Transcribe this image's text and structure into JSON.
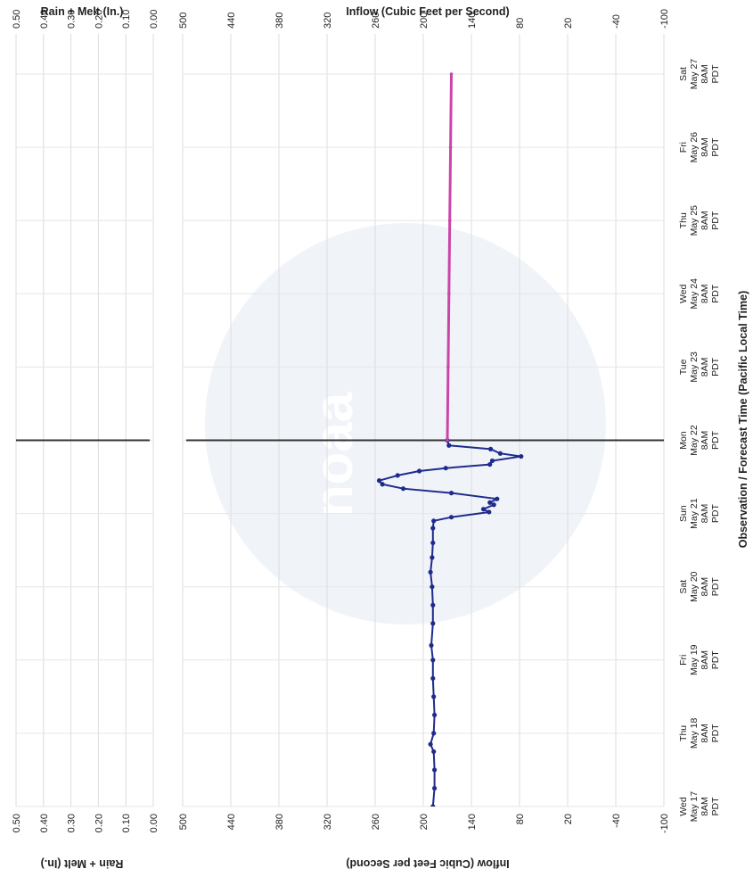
{
  "chart_data": [
    {
      "type": "bar",
      "panel": "precipitation",
      "title": "Rain + Melt (In.)",
      "title_bottom": "Rain + Melt (In.)",
      "ylim": [
        0,
        0.5
      ],
      "ticks": [
        {
          "v": 0.5,
          "label": "0.50"
        },
        {
          "v": 0.4,
          "label": "0.40"
        },
        {
          "v": 0.3,
          "label": "0.30"
        },
        {
          "v": 0.2,
          "label": "0.20"
        },
        {
          "v": 0.1,
          "label": "0.10"
        },
        {
          "v": 0,
          "label": "0.00"
        }
      ],
      "values": []
    },
    {
      "type": "line",
      "panel": "inflow",
      "title": "Inflow (Cubic Feet per Second)",
      "title_bottom": "Inflow (Cubic Feet per Second)",
      "xlabel": "Observation / Forecast Time (Pacific Local Time)",
      "ylim": [
        -100,
        500
      ],
      "ticks": [
        {
          "v": 500,
          "label": "500"
        },
        {
          "v": 440,
          "label": "440"
        },
        {
          "v": 380,
          "label": "380"
        },
        {
          "v": 320,
          "label": "320"
        },
        {
          "v": 260,
          "label": "260"
        },
        {
          "v": 200,
          "label": "200"
        },
        {
          "v": 140,
          "label": "140"
        },
        {
          "v": 80,
          "label": "80"
        },
        {
          "v": 20,
          "label": "20"
        },
        {
          "v": -40,
          "label": "-40"
        },
        {
          "v": -100,
          "label": "-100"
        }
      ],
      "xlim_days": [
        17,
        27
      ],
      "time_ticks": [
        {
          "day": 17,
          "lines": [
            "Wed",
            "May 17",
            "8AM",
            "PDT"
          ]
        },
        {
          "day": 18,
          "lines": [
            "Thu",
            "May 18",
            "8AM",
            "PDT"
          ]
        },
        {
          "day": 19,
          "lines": [
            "Fri",
            "May 19",
            "8AM",
            "PDT"
          ]
        },
        {
          "day": 20,
          "lines": [
            "Sat",
            "May 20",
            "8AM",
            "PDT"
          ]
        },
        {
          "day": 21,
          "lines": [
            "Sun",
            "May 21",
            "8AM",
            "PDT"
          ]
        },
        {
          "day": 22,
          "lines": [
            "Mon",
            "May 22",
            "8AM",
            "PDT"
          ]
        },
        {
          "day": 23,
          "lines": [
            "Tue",
            "May 23",
            "8AM",
            "PDT"
          ]
        },
        {
          "day": 24,
          "lines": [
            "Wed",
            "May 24",
            "8AM",
            "PDT"
          ]
        },
        {
          "day": 25,
          "lines": [
            "Thu",
            "May 25",
            "8AM",
            "PDT"
          ]
        },
        {
          "day": 26,
          "lines": [
            "Fri",
            "May 26",
            "8AM",
            "PDT"
          ]
        },
        {
          "day": 27,
          "lines": [
            "Sat",
            "May 27",
            "8AM",
            "PDT"
          ]
        }
      ],
      "current_time_day": 22,
      "watermark": "noaa",
      "series": [
        {
          "role": "observed",
          "color": "#1f2b8c",
          "x": [
            17.0,
            17.25,
            17.5,
            17.75,
            17.85,
            18.0,
            18.25,
            18.5,
            18.75,
            19.0,
            19.2,
            19.5,
            19.75,
            20.0,
            20.2,
            20.4,
            20.6,
            20.8,
            20.9,
            20.95,
            21.02,
            21.06,
            21.12,
            21.15,
            21.2,
            21.28,
            21.34,
            21.4,
            21.45,
            21.52,
            21.58,
            21.62,
            21.67,
            21.72,
            21.78,
            21.82,
            21.88,
            21.93,
            22.0
          ],
          "values": [
            188,
            186,
            186,
            187,
            191,
            187,
            186,
            187,
            188,
            188,
            190,
            188,
            188,
            189,
            191,
            189,
            188,
            188,
            187,
            165,
            118,
            125,
            112,
            117,
            108,
            165,
            225,
            251,
            255,
            232,
            205,
            172,
            117,
            114,
            78,
            104,
            116,
            168,
            170
          ]
        },
        {
          "role": "forecast",
          "color": "#cc44aa",
          "x": [
            22.0,
            23.0,
            24.0,
            25.0,
            26.0,
            27.0
          ],
          "values": [
            170,
            169,
            168,
            167,
            166,
            165
          ]
        }
      ]
    }
  ]
}
